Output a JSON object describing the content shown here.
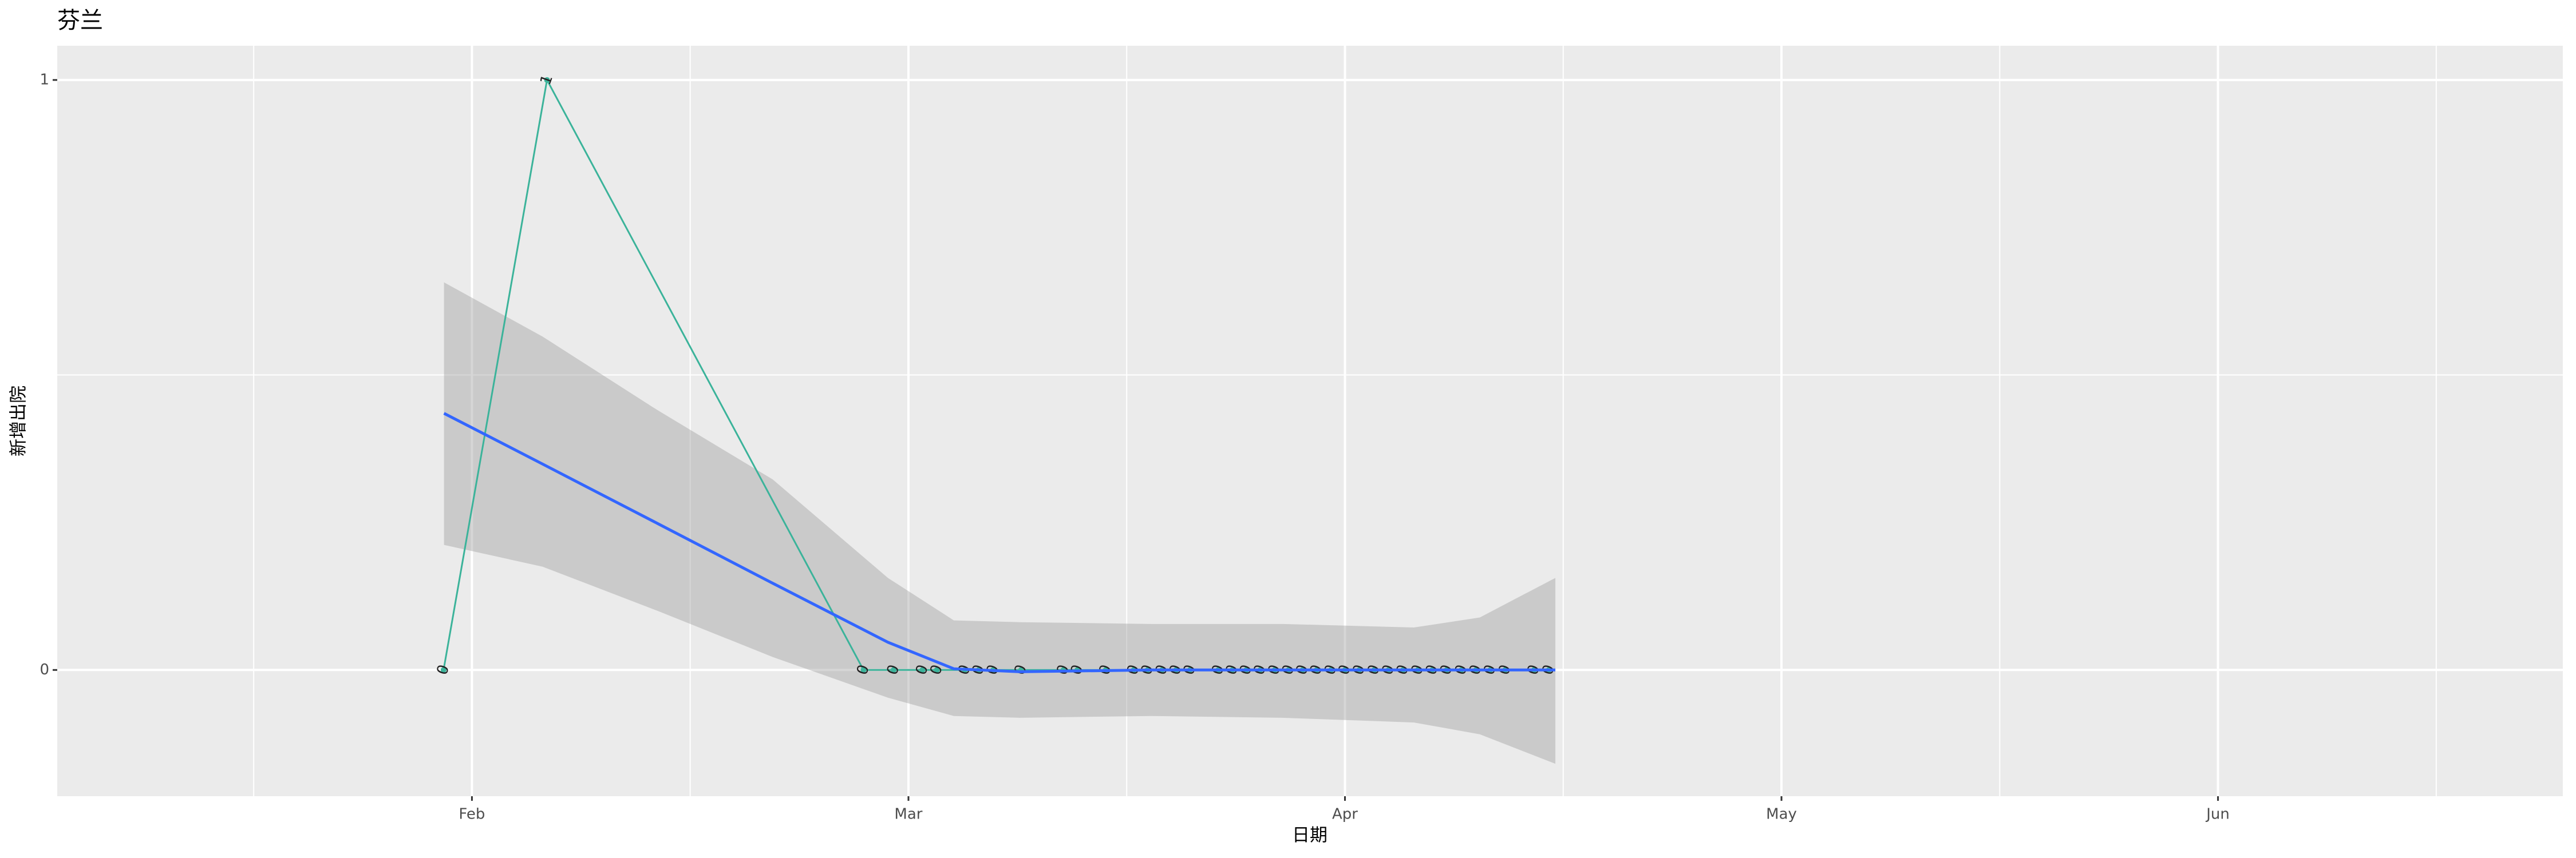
{
  "chart_data": {
    "type": "line",
    "title": "芬兰",
    "x_label": "日期",
    "y_label": "新增出院",
    "color": "#3bb39a",
    "x": [
      1.935,
      2.172,
      2.897,
      2.966,
      3.032,
      3.065,
      3.129,
      3.161,
      3.194,
      3.258,
      3.355,
      3.387,
      3.452,
      3.516,
      3.548,
      3.581,
      3.613,
      3.645,
      3.71,
      3.742,
      3.774,
      3.806,
      3.839,
      3.871,
      3.903,
      3.935,
      3.968,
      4.0,
      4.033,
      4.067,
      4.1,
      4.133,
      4.167,
      4.2,
      4.233,
      4.267,
      4.3,
      4.333,
      4.367,
      4.433,
      4.467
    ],
    "values": [
      0,
      1,
      0,
      0,
      0,
      0,
      0,
      0,
      0,
      0,
      0,
      0,
      0,
      0,
      0,
      0,
      0,
      0,
      0,
      0,
      0,
      0,
      0,
      0,
      0,
      0,
      0,
      0,
      0,
      0,
      0,
      0,
      0,
      0,
      0,
      0,
      0,
      0,
      0,
      0,
      0
    ],
    "smooth": {
      "color": "#3366ff",
      "band_color": "#999999",
      "x": [
        1.936,
        2.162,
        2.426,
        2.689,
        2.953,
        3.104,
        3.254,
        3.556,
        3.857,
        4.158,
        4.309,
        4.482
      ],
      "values": [
        0.435,
        0.349,
        0.248,
        0.147,
        0.047,
        0.002,
        -0.003,
        0,
        0,
        0,
        0,
        0
      ],
      "upper": [
        0.657,
        0.565,
        0.44,
        0.323,
        0.156,
        0.084,
        0.081,
        0.078,
        0.078,
        0.072,
        0.089,
        0.156
      ],
      "lower": [
        0.212,
        0.175,
        0.1,
        0.022,
        -0.047,
        -0.078,
        -0.081,
        -0.078,
        -0.081,
        -0.089,
        -0.109,
        -0.159
      ]
    },
    "xlim": [
      1.05,
      6.79
    ],
    "xticks": [
      {
        "value": 2,
        "label": "Feb"
      },
      {
        "value": 3,
        "label": "Mar"
      },
      {
        "value": 4,
        "label": "Apr"
      },
      {
        "value": 5,
        "label": "May"
      },
      {
        "value": 6,
        "label": "Jun"
      }
    ],
    "ylim": [
      -0.214,
      1.058
    ],
    "yticks": [
      0,
      1
    ],
    "grid": true
  }
}
